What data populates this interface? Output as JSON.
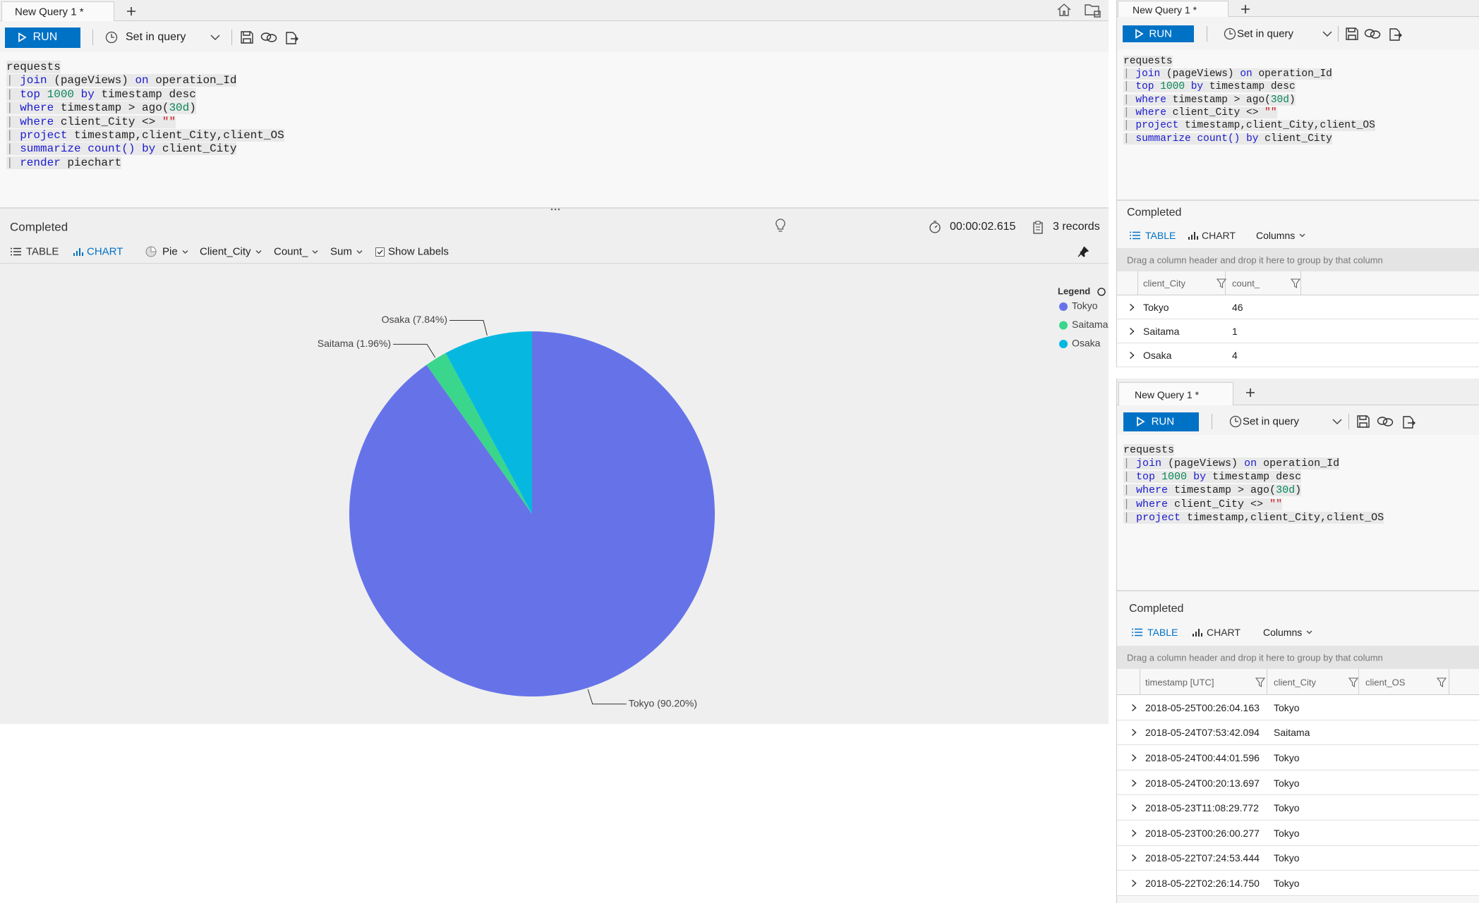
{
  "left": {
    "tab": "New Query 1 *",
    "run": "RUN",
    "time_mode": "Set in query",
    "code": [
      [
        [
          "requests",
          "plain"
        ]
      ],
      [
        [
          "| ",
          "pipe"
        ],
        [
          "join",
          "kw"
        ],
        [
          " (pageViews) ",
          "plain"
        ],
        [
          "on",
          "kw"
        ],
        [
          " operation_Id",
          "plain"
        ]
      ],
      [
        [
          "| ",
          "pipe"
        ],
        [
          "top",
          "kw"
        ],
        [
          " ",
          "plain"
        ],
        [
          "1000",
          "num"
        ],
        [
          " ",
          "plain"
        ],
        [
          "by",
          "kw"
        ],
        [
          " timestamp desc",
          "plain"
        ]
      ],
      [
        [
          "| ",
          "pipe"
        ],
        [
          "where",
          "kw"
        ],
        [
          " timestamp > ago(",
          "plain"
        ],
        [
          "30d",
          "num"
        ],
        [
          ")",
          "plain"
        ]
      ],
      [
        [
          "| ",
          "pipe"
        ],
        [
          "where",
          "kw"
        ],
        [
          " client_City <> ",
          "plain"
        ],
        [
          "\"\"",
          "str"
        ]
      ],
      [
        [
          "| ",
          "pipe"
        ],
        [
          "project",
          "kw"
        ],
        [
          " timestamp,client_City,client_OS",
          "plain"
        ]
      ],
      [
        [
          "| ",
          "pipe"
        ],
        [
          "summarize",
          "kw"
        ],
        [
          " ",
          "plain"
        ],
        [
          "count()",
          "kw"
        ],
        [
          " ",
          "plain"
        ],
        [
          "by",
          "kw"
        ],
        [
          " client_City",
          "plain"
        ]
      ],
      [
        [
          "| ",
          "pipe"
        ],
        [
          "render",
          "kw"
        ],
        [
          " piechart",
          "plain"
        ]
      ]
    ],
    "status": "Completed",
    "duration": "00:00:02.615",
    "records": "3 records",
    "views": [
      "TABLE",
      "CHART"
    ],
    "chart_options": [
      "Pie",
      "Client_City",
      "Count_",
      "Sum"
    ],
    "show_labels": "Show Labels",
    "chart": {
      "type": "pie",
      "legend_title": "Legend",
      "legend": "top-right",
      "categories": [
        "Tokyo",
        "Saitama",
        "Osaka"
      ],
      "values": [
        90.2,
        1.96,
        7.84
      ],
      "value_labels": [
        "Tokyo (90.20%)",
        "Saitama (1.96%)",
        "Osaka (7.84%)"
      ],
      "colors": [
        "#6673e8",
        "#3ad68c",
        "#06b8e0"
      ]
    }
  },
  "right_top": {
    "tab": "New Query 1 *",
    "run": "RUN",
    "time_mode": "Set in query",
    "code": [
      [
        [
          "requests",
          "plain"
        ]
      ],
      [
        [
          "| ",
          "pipe"
        ],
        [
          "join",
          "kw"
        ],
        [
          " (pageViews) ",
          "plain"
        ],
        [
          "on",
          "kw"
        ],
        [
          " operation_Id",
          "plain"
        ]
      ],
      [
        [
          "| ",
          "pipe"
        ],
        [
          "top",
          "kw"
        ],
        [
          " ",
          "plain"
        ],
        [
          "1000",
          "num"
        ],
        [
          " ",
          "plain"
        ],
        [
          "by",
          "kw"
        ],
        [
          " timestamp desc",
          "plain"
        ]
      ],
      [
        [
          "| ",
          "pipe"
        ],
        [
          "where",
          "kw"
        ],
        [
          " timestamp > ago(",
          "plain"
        ],
        [
          "30d",
          "num"
        ],
        [
          ")",
          "plain"
        ]
      ],
      [
        [
          "| ",
          "pipe"
        ],
        [
          "where",
          "kw"
        ],
        [
          " client_City <> ",
          "plain"
        ],
        [
          "\"\"",
          "str"
        ]
      ],
      [
        [
          "| ",
          "pipe"
        ],
        [
          "project",
          "kw"
        ],
        [
          " timestamp,client_City,client_OS",
          "plain"
        ]
      ],
      [
        [
          "| ",
          "pipe"
        ],
        [
          "summarize",
          "kw"
        ],
        [
          " ",
          "plain"
        ],
        [
          "count()",
          "kw"
        ],
        [
          " ",
          "plain"
        ],
        [
          "by",
          "kw"
        ],
        [
          " client_City",
          "plain"
        ]
      ]
    ],
    "status": "Completed",
    "views": [
      "TABLE",
      "CHART"
    ],
    "columns_menu": "Columns",
    "group_hint": "Drag a column header and drop it here to group by that column",
    "table": {
      "columns": [
        "client_City",
        "count_"
      ],
      "rows": [
        [
          "Tokyo",
          46
        ],
        [
          "Saitama",
          1
        ],
        [
          "Osaka",
          4
        ]
      ]
    }
  },
  "right_bottom": {
    "tab": "New Query 1 *",
    "run": "RUN",
    "time_mode": "Set in query",
    "code": [
      [
        [
          "requests",
          "plain"
        ]
      ],
      [
        [
          "| ",
          "pipe"
        ],
        [
          "join",
          "kw"
        ],
        [
          " (pageViews) ",
          "plain"
        ],
        [
          "on",
          "kw"
        ],
        [
          " operation_Id",
          "plain"
        ]
      ],
      [
        [
          "| ",
          "pipe"
        ],
        [
          "top",
          "kw"
        ],
        [
          " ",
          "plain"
        ],
        [
          "1000",
          "num"
        ],
        [
          " ",
          "plain"
        ],
        [
          "by",
          "kw"
        ],
        [
          " timestamp desc",
          "plain"
        ]
      ],
      [
        [
          "| ",
          "pipe"
        ],
        [
          "where",
          "kw"
        ],
        [
          " timestamp > ago(",
          "plain"
        ],
        [
          "30d",
          "num"
        ],
        [
          ")",
          "plain"
        ]
      ],
      [
        [
          "| ",
          "pipe"
        ],
        [
          "where",
          "kw"
        ],
        [
          " client_City <> ",
          "plain"
        ],
        [
          "\"\"",
          "str"
        ]
      ],
      [
        [
          "| ",
          "pipe"
        ],
        [
          "project",
          "kw"
        ],
        [
          " timestamp,client_City,client_OS",
          "plain"
        ]
      ]
    ],
    "status": "Completed",
    "views": [
      "TABLE",
      "CHART"
    ],
    "columns_menu": "Columns",
    "group_hint": "Drag a column header and drop it here to group by that column",
    "table": {
      "columns": [
        "timestamp [UTC]",
        "client_City",
        "client_OS"
      ],
      "rows": [
        [
          "2018-05-25T00:26:04.163",
          "Tokyo"
        ],
        [
          "2018-05-24T07:53:42.094",
          "Saitama"
        ],
        [
          "2018-05-24T00:44:01.596",
          "Tokyo"
        ],
        [
          "2018-05-24T00:20:13.697",
          "Tokyo"
        ],
        [
          "2018-05-23T11:08:29.772",
          "Tokyo"
        ],
        [
          "2018-05-23T00:26:00.277",
          "Tokyo"
        ],
        [
          "2018-05-22T07:24:53.444",
          "Tokyo"
        ],
        [
          "2018-05-22T02:26:14.750",
          "Tokyo"
        ]
      ]
    }
  }
}
